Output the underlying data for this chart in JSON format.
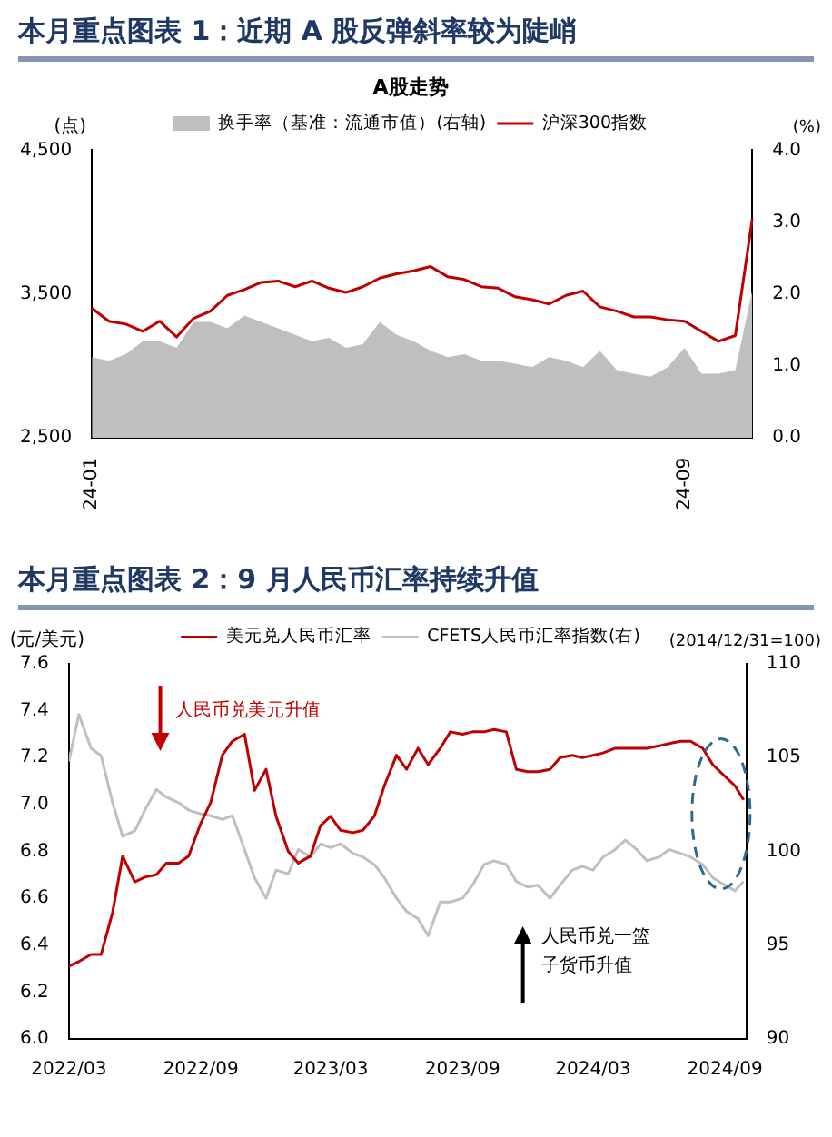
{
  "chart_data": [
    {
      "type": "line",
      "title": "本月重点图表 1：近期 A 股反弹斜率较为陡峭",
      "subtitle": "A股走势",
      "ylabel": "(点)",
      "y2label": "(%)",
      "categories": [
        "24-01",
        null,
        null,
        null,
        null,
        null,
        null,
        null,
        null,
        null,
        null,
        null,
        null,
        null,
        null,
        null,
        null,
        null,
        null,
        null,
        null,
        null,
        null,
        null,
        null,
        null,
        null,
        null,
        null,
        null,
        null,
        null,
        null,
        null,
        null,
        "24-09",
        null,
        null,
        null,
        null
      ],
      "series": [
        {
          "name": "换手率（基准：流通市值）(右轴)",
          "type": "area",
          "axis": "y2",
          "color": "#bfbfbf",
          "values": [
            1.12,
            1.07,
            1.16,
            1.34,
            1.34,
            1.25,
            1.61,
            1.61,
            1.52,
            1.7,
            1.61,
            1.52,
            1.43,
            1.34,
            1.39,
            1.25,
            1.3,
            1.61,
            1.43,
            1.34,
            1.21,
            1.12,
            1.16,
            1.07,
            1.07,
            1.03,
            0.98,
            1.12,
            1.07,
            0.98,
            1.21,
            0.94,
            0.89,
            0.85,
            0.98,
            1.25,
            0.89,
            0.89,
            0.94,
            2.05
          ]
        },
        {
          "name": "沪深300指数",
          "type": "line",
          "color": "#c00000",
          "values": [
            3400,
            3310,
            3290,
            3240,
            3310,
            3200,
            3330,
            3380,
            3490,
            3530,
            3580,
            3590,
            3550,
            3590,
            3540,
            3510,
            3550,
            3610,
            3640,
            3660,
            3690,
            3620,
            3600,
            3550,
            3540,
            3480,
            3460,
            3430,
            3490,
            3520,
            3410,
            3380,
            3340,
            3340,
            3320,
            3310,
            3240,
            3170,
            3210,
            4020
          ]
        }
      ],
      "ylim": [
        2500,
        4500
      ],
      "yticks": [
        {
          "value": 2500,
          "label": "2,500"
        },
        {
          "value": 3500,
          "label": "3,500"
        },
        {
          "value": 4500,
          "label": "4,500"
        }
      ],
      "y2lim": [
        0,
        4
      ],
      "y2ticks": [
        {
          "value": 0,
          "label": "0.0"
        },
        {
          "value": 1,
          "label": "1.0"
        },
        {
          "value": 2,
          "label": "2.0"
        },
        {
          "value": 3,
          "label": "3.0"
        },
        {
          "value": 4,
          "label": "4.0"
        }
      ],
      "grid": false,
      "legend": "top"
    },
    {
      "type": "line",
      "title": "本月重点图表 2：9 月人民币汇率持续升值",
      "ylabel": "(元/美元)",
      "y2label": "(2014/12/31=100)",
      "x": [
        "2022-03-01",
        "2022-03-15",
        "2022-04-01",
        "2022-04-15",
        "2022-05-01",
        "2022-05-15",
        "2022-06-01",
        "2022-06-15",
        "2022-07-01",
        "2022-07-15",
        "2022-08-01",
        "2022-08-15",
        "2022-09-01",
        "2022-09-15",
        "2022-10-01",
        "2022-10-15",
        "2022-11-01",
        "2022-11-15",
        "2022-12-01",
        "2022-12-15",
        "2023-01-01",
        "2023-01-15",
        "2023-02-01",
        "2023-02-15",
        "2023-03-01",
        "2023-03-15",
        "2023-04-01",
        "2023-04-15",
        "2023-05-01",
        "2023-05-15",
        "2023-06-01",
        "2023-06-15",
        "2023-07-01",
        "2023-07-15",
        "2023-08-01",
        "2023-08-15",
        "2023-09-01",
        "2023-09-15",
        "2023-10-01",
        "2023-10-15",
        "2023-11-01",
        "2023-11-15",
        "2023-12-01",
        "2023-12-15",
        "2024-01-01",
        "2024-01-15",
        "2024-02-01",
        "2024-02-15",
        "2024-03-01",
        "2024-03-15",
        "2024-04-01",
        "2024-04-15",
        "2024-05-01",
        "2024-05-15",
        "2024-06-01",
        "2024-06-15",
        "2024-07-01",
        "2024-07-15",
        "2024-08-01",
        "2024-08-15",
        "2024-09-01",
        "2024-09-15",
        "2024-09-27"
      ],
      "series": [
        {
          "name": "美元兑人民币汇率",
          "color": "#c00000",
          "values": [
            6.31,
            6.33,
            6.36,
            6.36,
            6.54,
            6.78,
            6.67,
            6.69,
            6.7,
            6.75,
            6.75,
            6.78,
            6.92,
            7.01,
            7.21,
            7.27,
            7.3,
            7.06,
            7.15,
            6.95,
            6.8,
            6.75,
            6.78,
            6.91,
            6.95,
            6.89,
            6.88,
            6.89,
            6.95,
            7.08,
            7.21,
            7.15,
            7.24,
            7.17,
            7.24,
            7.31,
            7.3,
            7.31,
            7.31,
            7.32,
            7.31,
            7.15,
            7.14,
            7.14,
            7.15,
            7.2,
            7.21,
            7.2,
            7.21,
            7.22,
            7.24,
            7.24,
            7.24,
            7.24,
            7.25,
            7.26,
            7.27,
            7.27,
            7.24,
            7.17,
            7.12,
            7.08,
            7.02
          ]
        },
        {
          "name": "CFETS人民币汇率指数(右)",
          "axis": "y2",
          "color": "#bfbfbf",
          "values": [
            104.8,
            107.3,
            105.5,
            105.1,
            102.6,
            100.8,
            101.1,
            102.2,
            103.3,
            102.9,
            102.6,
            102.2,
            102,
            101.9,
            101.7,
            101.9,
            100.1,
            98.6,
            97.5,
            99,
            98.8,
            100.1,
            99.7,
            100.4,
            100.2,
            100.4,
            99.9,
            99.7,
            99.3,
            98.6,
            97.5,
            96.8,
            96.4,
            95.5,
            97.3,
            97.3,
            97.5,
            98.2,
            99.3,
            99.5,
            99.3,
            98.4,
            98.1,
            98.2,
            97.5,
            98.2,
            99,
            99.2,
            99,
            99.7,
            100.1,
            100.6,
            100.1,
            99.5,
            99.7,
            100.1,
            99.9,
            99.7,
            99.3,
            98.6,
            98.2,
            97.9,
            98.4
          ]
        }
      ],
      "xlim": [
        "2022-03-01",
        "2024-10-01"
      ],
      "xticks": [
        {
          "value": "2022-03-01",
          "label": "2022/03"
        },
        {
          "value": "2022-09-01",
          "label": "2022/09"
        },
        {
          "value": "2023-03-01",
          "label": "2023/03"
        },
        {
          "value": "2023-09-01",
          "label": "2023/09"
        },
        {
          "value": "2024-03-01",
          "label": "2024/03"
        },
        {
          "value": "2024-09-01",
          "label": "2024/09"
        }
      ],
      "ylim": [
        6,
        7.6
      ],
      "yticks": [
        {
          "value": 6,
          "label": "6.0"
        },
        {
          "value": 6.2,
          "label": "6.2"
        },
        {
          "value": 6.4,
          "label": "6.4"
        },
        {
          "value": 6.6,
          "label": "6.6"
        },
        {
          "value": 6.8,
          "label": "6.8"
        },
        {
          "value": 7,
          "label": "7.0"
        },
        {
          "value": 7.2,
          "label": "7.2"
        },
        {
          "value": 7.4,
          "label": "7.4"
        },
        {
          "value": 7.6,
          "label": "7.6"
        }
      ],
      "y2lim": [
        90,
        110
      ],
      "y2ticks": [
        90,
        95,
        100,
        105,
        110
      ],
      "annotations": [
        "人民币兑美元升值",
        "人民币兑一篮子货币升值"
      ],
      "grid": false,
      "legend": "top"
    }
  ]
}
